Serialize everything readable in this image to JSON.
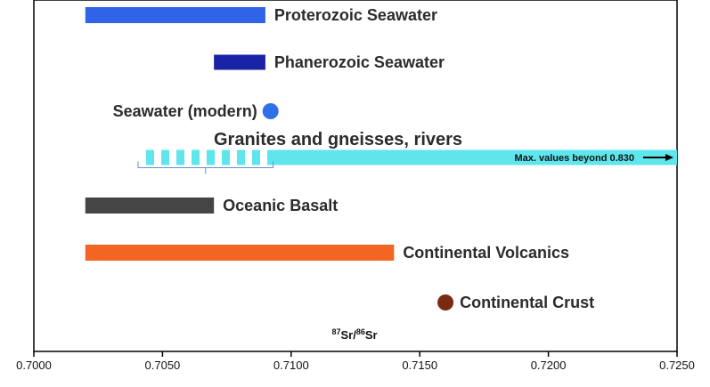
{
  "chart_data": {
    "type": "range",
    "xlabel": {
      "mass_a": "87",
      "elem_a": "Sr",
      "slash": "/",
      "mass_b": "86",
      "elem_b": "Sr"
    },
    "xlim": [
      0.7,
      0.725
    ],
    "xticks": [
      0.7,
      0.705,
      0.71,
      0.715,
      0.72,
      0.725
    ],
    "tick_labels": [
      "0.7000",
      "0.7050",
      "0.7100",
      "0.7150",
      "0.7200",
      "0.7250"
    ],
    "grid": false,
    "series": [
      {
        "name": "Proterozoic Seawater",
        "kind": "bar",
        "min": 0.702,
        "max": 0.709,
        "color": "#2f63e8"
      },
      {
        "name": "Phanerozoic Seawater",
        "kind": "bar",
        "min": 0.707,
        "max": 0.709,
        "color": "#1a22a6"
      },
      {
        "name": "Seawater (modern)",
        "kind": "point",
        "value": 0.7092,
        "color": "#2f6fe8"
      },
      {
        "name": "Granites and gneisses, rivers",
        "kind": "bar",
        "min": 0.704,
        "max": 0.725,
        "striped_until": 0.7093,
        "color": "#5ee6ec",
        "annotation": "Max. values beyond 0.830"
      },
      {
        "name": "Oceanic Basalt",
        "kind": "bar",
        "min": 0.702,
        "max": 0.707,
        "color": "#454545"
      },
      {
        "name": "Continental Volcanics",
        "kind": "bar",
        "min": 0.702,
        "max": 0.714,
        "color": "#f26522"
      },
      {
        "name": "Continental Crust",
        "kind": "point",
        "value": 0.716,
        "color": "#7a2a10"
      }
    ]
  }
}
